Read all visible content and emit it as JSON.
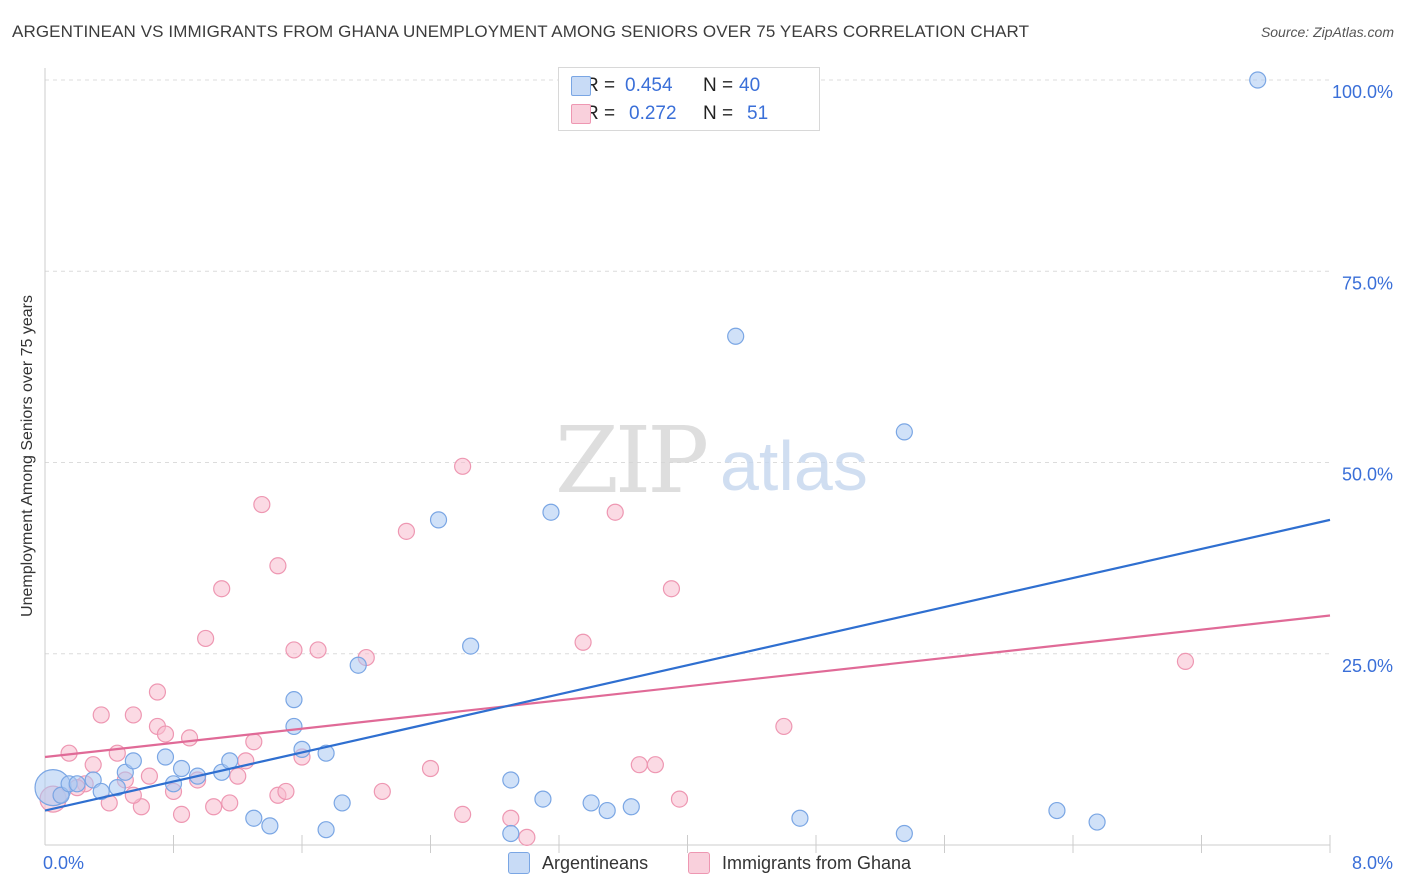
{
  "title": "ARGENTINEAN VS IMMIGRANTS FROM GHANA UNEMPLOYMENT AMONG SENIORS OVER 75 YEARS CORRELATION CHART",
  "source": "Source: ZipAtlas.com",
  "watermark": {
    "zip": "ZIP",
    "atlas": "atlas"
  },
  "colors": {
    "blue_fill": "#a9c8f2",
    "blue_stroke": "#7aa6e4",
    "blue_line": "#2f6fd0",
    "pink_fill": "#f7bccd",
    "pink_stroke": "#ee97b2",
    "pink_line": "#e06a97",
    "tick_text": "#3a6fd8",
    "grid": "#dcdcdc"
  },
  "legend": {
    "rows": [
      {
        "r_label": "R =",
        "r_value": "0.454",
        "n_label": "N =",
        "n_value": "40"
      },
      {
        "r_label": "R =",
        "r_value": "0.272",
        "n_label": "N =",
        "n_value": "51"
      }
    ]
  },
  "bottom_legend": [
    {
      "label": "Argentineans"
    },
    {
      "label": "Immigrants from Ghana"
    }
  ],
  "chart_data": {
    "type": "scatter",
    "title": "ARGENTINEAN VS IMMIGRANTS FROM GHANA UNEMPLOYMENT AMONG SENIORS OVER 75 YEARS CORRELATION CHART",
    "xlabel": "",
    "ylabel": "Unemployment Among Seniors over 75 years",
    "xlim": [
      0,
      8
    ],
    "ylim": [
      0,
      100
    ],
    "x_tick_labels": [
      "0.0%",
      "8.0%"
    ],
    "y_tick_labels": [
      "100.0%",
      "75.0%",
      "50.0%",
      "25.0%"
    ],
    "y_ticks": [
      100,
      75,
      50,
      25
    ],
    "grid": "horizontal dashed",
    "legend_position": "top-center",
    "series": [
      {
        "name": "Argentineans",
        "color": "#a9c8f2",
        "trend": {
          "x": [
            0,
            8
          ],
          "y": [
            4.5,
            42.5
          ]
        },
        "points": [
          {
            "x": 0.05,
            "y": 7.5,
            "s": "xl"
          },
          {
            "x": 0.1,
            "y": 6.5
          },
          {
            "x": 0.15,
            "y": 8.0
          },
          {
            "x": 0.3,
            "y": 8.5
          },
          {
            "x": 0.5,
            "y": 9.5
          },
          {
            "x": 0.55,
            "y": 11.0
          },
          {
            "x": 0.75,
            "y": 11.5
          },
          {
            "x": 0.45,
            "y": 7.5
          },
          {
            "x": 0.85,
            "y": 10.0
          },
          {
            "x": 0.95,
            "y": 9.0
          },
          {
            "x": 1.1,
            "y": 9.5
          },
          {
            "x": 1.15,
            "y": 11.0
          },
          {
            "x": 0.8,
            "y": 8.0
          },
          {
            "x": 1.55,
            "y": 15.5
          },
          {
            "x": 1.6,
            "y": 12.5
          },
          {
            "x": 1.75,
            "y": 12.0
          },
          {
            "x": 1.95,
            "y": 23.5
          },
          {
            "x": 1.55,
            "y": 19.0
          },
          {
            "x": 2.45,
            "y": 42.5
          },
          {
            "x": 2.65,
            "y": 26.0
          },
          {
            "x": 3.15,
            "y": 43.5
          },
          {
            "x": 1.85,
            "y": 5.5
          },
          {
            "x": 1.3,
            "y": 3.5
          },
          {
            "x": 1.4,
            "y": 2.5
          },
          {
            "x": 1.75,
            "y": 2.0
          },
          {
            "x": 2.9,
            "y": 8.5
          },
          {
            "x": 2.9,
            "y": 1.5
          },
          {
            "x": 3.1,
            "y": 6.0
          },
          {
            "x": 3.4,
            "y": 5.5
          },
          {
            "x": 3.5,
            "y": 4.5
          },
          {
            "x": 3.65,
            "y": 5.0
          },
          {
            "x": 4.3,
            "y": 66.5
          },
          {
            "x": 4.7,
            "y": 3.5
          },
          {
            "x": 5.35,
            "y": 54.0
          },
          {
            "x": 5.35,
            "y": 1.5
          },
          {
            "x": 6.3,
            "y": 4.5
          },
          {
            "x": 6.55,
            "y": 3.0
          },
          {
            "x": 7.55,
            "y": 100
          },
          {
            "x": 0.2,
            "y": 8.0
          },
          {
            "x": 0.35,
            "y": 7.0
          }
        ]
      },
      {
        "name": "Immigrants from Ghana",
        "color": "#f7bccd",
        "trend": {
          "x": [
            0,
            8
          ],
          "y": [
            11.5,
            30.0
          ]
        },
        "points": [
          {
            "x": 0.05,
            "y": 6.0,
            "s": "l"
          },
          {
            "x": 0.1,
            "y": 6.5
          },
          {
            "x": 0.15,
            "y": 12.0
          },
          {
            "x": 0.25,
            "y": 8.0
          },
          {
            "x": 0.3,
            "y": 10.5
          },
          {
            "x": 0.35,
            "y": 17.0
          },
          {
            "x": 0.4,
            "y": 5.5
          },
          {
            "x": 0.45,
            "y": 12.0
          },
          {
            "x": 0.5,
            "y": 8.5
          },
          {
            "x": 0.55,
            "y": 17.0
          },
          {
            "x": 0.6,
            "y": 5.0
          },
          {
            "x": 0.7,
            "y": 15.5
          },
          {
            "x": 0.7,
            "y": 20.0
          },
          {
            "x": 0.75,
            "y": 14.5
          },
          {
            "x": 0.8,
            "y": 7.0
          },
          {
            "x": 0.85,
            "y": 4.0
          },
          {
            "x": 0.9,
            "y": 14.0
          },
          {
            "x": 0.95,
            "y": 8.5
          },
          {
            "x": 1.0,
            "y": 27.0
          },
          {
            "x": 1.05,
            "y": 5.0
          },
          {
            "x": 1.1,
            "y": 33.5
          },
          {
            "x": 1.15,
            "y": 5.5
          },
          {
            "x": 1.2,
            "y": 9.0
          },
          {
            "x": 1.25,
            "y": 11.0
          },
          {
            "x": 1.3,
            "y": 13.5
          },
          {
            "x": 1.35,
            "y": 44.5
          },
          {
            "x": 1.45,
            "y": 36.5
          },
          {
            "x": 1.45,
            "y": 6.5
          },
          {
            "x": 1.5,
            "y": 7.0
          },
          {
            "x": 1.55,
            "y": 25.5
          },
          {
            "x": 1.6,
            "y": 11.5
          },
          {
            "x": 1.7,
            "y": 25.5
          },
          {
            "x": 2.0,
            "y": 24.5
          },
          {
            "x": 2.1,
            "y": 7.0
          },
          {
            "x": 2.25,
            "y": 41.0
          },
          {
            "x": 2.4,
            "y": 10.0
          },
          {
            "x": 2.6,
            "y": 4.0
          },
          {
            "x": 2.6,
            "y": 49.5
          },
          {
            "x": 2.9,
            "y": 3.5
          },
          {
            "x": 3.0,
            "y": 1.0
          },
          {
            "x": 3.35,
            "y": 26.5
          },
          {
            "x": 3.55,
            "y": 43.5
          },
          {
            "x": 3.7,
            "y": 10.5
          },
          {
            "x": 3.8,
            "y": 10.5
          },
          {
            "x": 3.9,
            "y": 33.5
          },
          {
            "x": 3.95,
            "y": 6.0
          },
          {
            "x": 4.6,
            "y": 15.5
          },
          {
            "x": 7.1,
            "y": 24.0
          },
          {
            "x": 0.2,
            "y": 7.5
          },
          {
            "x": 0.55,
            "y": 6.5
          },
          {
            "x": 0.65,
            "y": 9.0
          }
        ]
      }
    ]
  }
}
